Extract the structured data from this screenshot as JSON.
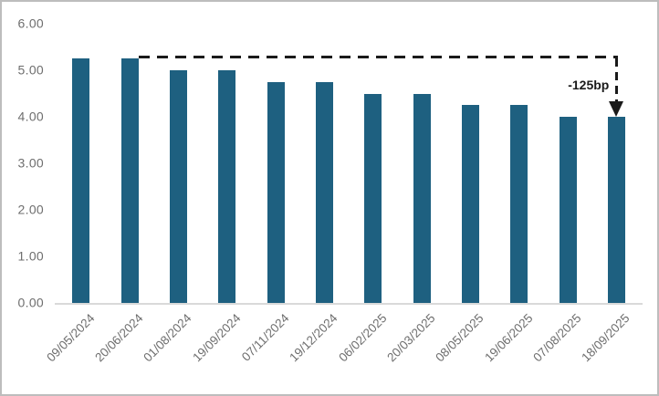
{
  "chart_data": {
    "type": "bar",
    "title": "",
    "xlabel": "",
    "ylabel": "",
    "categories": [
      "09/05/2024",
      "20/06/2024",
      "01/08/2024",
      "19/09/2024",
      "07/11/2024",
      "19/12/2024",
      "06/02/2025",
      "20/03/2025",
      "08/05/2025",
      "19/06/2025",
      "07/08/2025",
      "18/09/2025"
    ],
    "values": [
      5.25,
      5.25,
      5.0,
      5.0,
      4.75,
      4.75,
      4.5,
      4.5,
      4.25,
      4.25,
      4.0,
      4.0
    ],
    "ylim": [
      0,
      6
    ],
    "ytick_step": 1,
    "ytick_labels": [
      "0.00",
      "1.00",
      "2.00",
      "3.00",
      "4.00",
      "5.00",
      "6.00"
    ],
    "grid": false,
    "legend": "none",
    "bar_color": "#1E6080",
    "axis_label_color": "#6e6e6e",
    "axis_line_color": "#d9d9d9",
    "annotation": {
      "label": "-125bp",
      "from_index": 1,
      "to_index": 11,
      "from_value": 5.25,
      "to_value": 4.0,
      "style": "dashed-arrow",
      "color": "#1a1a1a"
    }
  }
}
